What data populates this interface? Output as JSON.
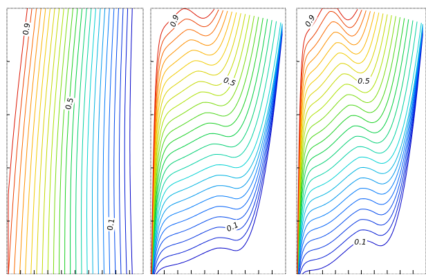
{
  "chart_data": [
    {
      "type": "contour",
      "levels": [
        0.1,
        0.2,
        0.3,
        0.4,
        0.5,
        0.6,
        0.7,
        0.8,
        0.9
      ],
      "labels": [
        {
          "text": "0.9",
          "level": 0.9
        },
        {
          "text": "0.5",
          "level": 0.5
        },
        {
          "text": "0.1",
          "level": 0.1
        }
      ]
    },
    {
      "type": "contour",
      "levels": [
        0.1,
        0.2,
        0.3,
        0.4,
        0.5,
        0.6,
        0.7,
        0.8,
        0.9
      ],
      "labels": [
        {
          "text": "0.9",
          "level": 0.9
        },
        {
          "text": "0.5",
          "level": 0.5
        },
        {
          "text": "0.1",
          "level": 0.1
        }
      ]
    },
    {
      "type": "contour",
      "levels": [
        0.1,
        0.2,
        0.3,
        0.4,
        0.5,
        0.6,
        0.7,
        0.8,
        0.9
      ],
      "labels": [
        {
          "text": "0.9",
          "level": 0.9
        },
        {
          "text": "0.5",
          "level": 0.5
        },
        {
          "text": "0.1",
          "level": 0.1
        }
      ]
    }
  ],
  "colors": {
    "low": "#0000c8",
    "mid": "#00d000",
    "high": "#e01000",
    "frame": "#000000"
  }
}
